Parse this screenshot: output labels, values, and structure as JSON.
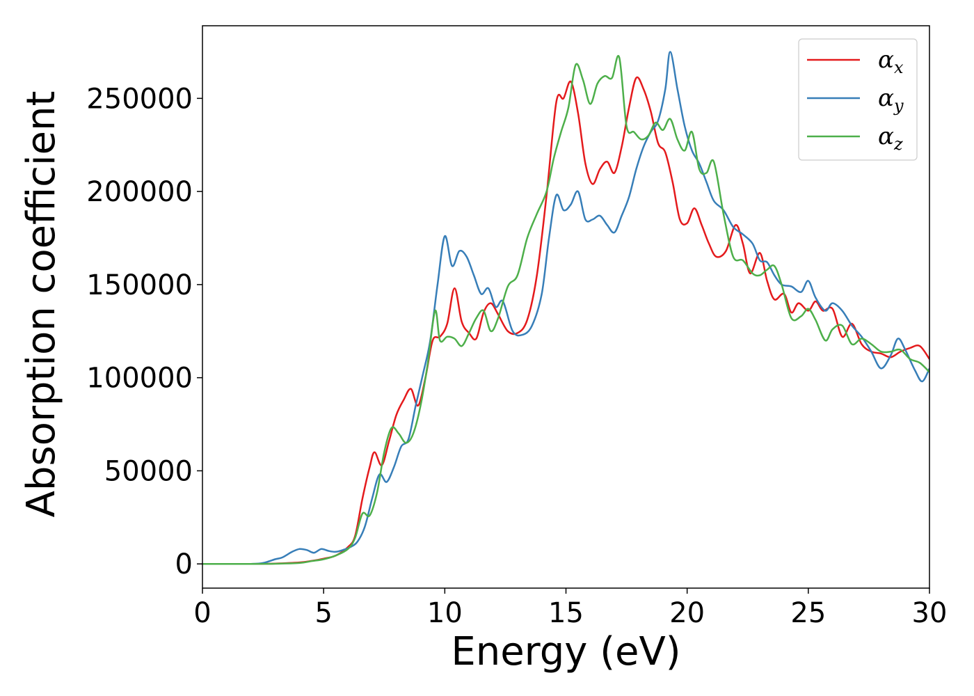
{
  "chart_data": {
    "type": "line",
    "title": "",
    "xlabel": "Energy (eV)",
    "ylabel": "Absorption coefficient",
    "xlim": [
      0,
      30
    ],
    "ylim": [
      -13000,
      289000
    ],
    "xticks": [
      0,
      5,
      10,
      15,
      20,
      25,
      30
    ],
    "xtick_labels": [
      "0",
      "5",
      "10",
      "15",
      "20",
      "25",
      "30"
    ],
    "yticks": [
      0,
      50000,
      100000,
      150000,
      200000,
      250000
    ],
    "ytick_labels": [
      "0",
      "50000",
      "100000",
      "150000",
      "200000",
      "250000"
    ],
    "grid": false,
    "legend": "top-right",
    "series": [
      {
        "name": "αx",
        "legend_symbol": "α",
        "legend_sub": "x",
        "color": "#e41a1c",
        "x": [
          0,
          1,
          2,
          3,
          4,
          4.5,
          5,
          5.5,
          6,
          6.3,
          6.6,
          6.9,
          7.1,
          7.4,
          7.7,
          8.0,
          8.3,
          8.6,
          8.9,
          9.2,
          9.5,
          9.8,
          10.1,
          10.4,
          10.7,
          11.0,
          11.3,
          11.6,
          11.9,
          12.2,
          12.6,
          13.0,
          13.4,
          13.8,
          14.2,
          14.6,
          14.9,
          15.2,
          15.5,
          15.8,
          16.1,
          16.4,
          16.7,
          17.0,
          17.3,
          17.6,
          17.9,
          18.2,
          18.5,
          18.8,
          19.1,
          19.4,
          19.7,
          20.0,
          20.3,
          20.6,
          20.9,
          21.2,
          21.6,
          22.0,
          22.3,
          22.6,
          23.0,
          23.3,
          23.6,
          24.0,
          24.3,
          24.6,
          25.0,
          25.3,
          25.6,
          26.0,
          26.4,
          26.8,
          27.2,
          27.6,
          28.0,
          28.4,
          28.8,
          29.2,
          29.6,
          30.0
        ],
        "values": [
          0,
          0,
          0,
          200,
          800,
          1600,
          2800,
          4500,
          9000,
          15000,
          35000,
          52000,
          60000,
          53000,
          66000,
          80000,
          88000,
          94000,
          85000,
          100000,
          120000,
          122000,
          129000,
          148000,
          130000,
          124000,
          121000,
          135000,
          140000,
          134000,
          125000,
          124000,
          131000,
          155000,
          198000,
          248000,
          250000,
          259000,
          242000,
          215000,
          204000,
          212000,
          216000,
          210000,
          224000,
          245000,
          261000,
          255000,
          243000,
          226000,
          221000,
          205000,
          185000,
          183000,
          191000,
          182000,
          172000,
          165000,
          168000,
          182000,
          172000,
          156000,
          167000,
          152000,
          142000,
          145000,
          135000,
          140000,
          136000,
          141000,
          136000,
          137000,
          122000,
          129000,
          118000,
          114000,
          113000,
          111000,
          114000,
          116000,
          117000,
          110000
        ]
      },
      {
        "name": "αy",
        "legend_symbol": "α",
        "legend_sub": "y",
        "color": "#377eb8",
        "x": [
          0,
          1,
          2,
          2.5,
          3,
          3.3,
          3.7,
          4.0,
          4.3,
          4.6,
          4.9,
          5.2,
          5.5,
          5.8,
          6.1,
          6.4,
          6.7,
          7.0,
          7.3,
          7.6,
          7.9,
          8.2,
          8.5,
          8.8,
          9.1,
          9.4,
          9.7,
          10.0,
          10.3,
          10.6,
          10.9,
          11.2,
          11.5,
          11.8,
          12.1,
          12.4,
          12.8,
          13.2,
          13.6,
          14.0,
          14.3,
          14.6,
          14.9,
          15.2,
          15.5,
          15.8,
          16.1,
          16.4,
          16.7,
          17.0,
          17.3,
          17.6,
          17.9,
          18.2,
          18.5,
          18.8,
          19.1,
          19.3,
          19.6,
          19.9,
          20.2,
          20.5,
          20.8,
          21.1,
          21.5,
          21.9,
          22.3,
          22.7,
          23.0,
          23.3,
          23.6,
          23.9,
          24.3,
          24.7,
          25.0,
          25.3,
          25.7,
          26.0,
          26.4,
          26.8,
          27.2,
          27.6,
          28.0,
          28.4,
          28.7,
          29.0,
          29.4,
          29.7,
          30.0
        ],
        "values": [
          0,
          0,
          0,
          500,
          2500,
          3500,
          6500,
          8000,
          7500,
          6000,
          8000,
          7000,
          6500,
          7500,
          9000,
          12000,
          20000,
          35000,
          48000,
          44000,
          52000,
          63000,
          67000,
          85000,
          102000,
          120000,
          150000,
          176000,
          160000,
          168000,
          165000,
          155000,
          145000,
          148000,
          138000,
          141000,
          125000,
          123000,
          128000,
          145000,
          175000,
          198000,
          190000,
          193000,
          200000,
          185000,
          185000,
          187000,
          182000,
          178000,
          187000,
          197000,
          212000,
          224000,
          232000,
          238000,
          255000,
          275000,
          255000,
          235000,
          222000,
          215000,
          205000,
          195000,
          190000,
          181000,
          177000,
          172000,
          163000,
          162000,
          155000,
          150000,
          149000,
          146000,
          152000,
          143000,
          136000,
          140000,
          136000,
          128000,
          122000,
          114000,
          105000,
          112000,
          121000,
          115000,
          104000,
          98000,
          105000
        ]
      },
      {
        "name": "αz",
        "legend_symbol": "α",
        "legend_sub": "z",
        "color": "#4daf4a",
        "x": [
          0,
          1,
          2,
          3,
          4,
          4.5,
          5,
          5.5,
          6,
          6.3,
          6.6,
          6.9,
          7.2,
          7.5,
          7.8,
          8.1,
          8.4,
          8.7,
          9.0,
          9.3,
          9.6,
          9.8,
          10.1,
          10.4,
          10.7,
          11.0,
          11.3,
          11.6,
          11.9,
          12.2,
          12.6,
          13.0,
          13.4,
          13.8,
          14.2,
          14.5,
          14.8,
          15.1,
          15.4,
          15.7,
          16.0,
          16.3,
          16.6,
          16.9,
          17.2,
          17.5,
          17.8,
          18.1,
          18.4,
          18.7,
          19.0,
          19.3,
          19.6,
          19.9,
          20.2,
          20.5,
          20.8,
          21.1,
          21.5,
          21.9,
          22.3,
          22.7,
          23.0,
          23.3,
          23.6,
          23.9,
          24.3,
          24.7,
          25.0,
          25.3,
          25.7,
          26.0,
          26.4,
          26.8,
          27.2,
          27.6,
          28.0,
          28.4,
          28.8,
          29.2,
          29.6,
          30.0
        ],
        "values": [
          0,
          0,
          0,
          100,
          500,
          1500,
          2500,
          4500,
          8000,
          14000,
          27000,
          26000,
          38000,
          60000,
          73000,
          70000,
          65000,
          70000,
          85000,
          108000,
          136000,
          120000,
          122000,
          121000,
          117000,
          124000,
          132000,
          136000,
          125000,
          132000,
          149000,
          155000,
          175000,
          188000,
          200000,
          218000,
          232000,
          245000,
          268000,
          260000,
          247000,
          258000,
          262000,
          261000,
          272000,
          235000,
          232000,
          228000,
          230000,
          237000,
          233000,
          239000,
          228000,
          222000,
          232000,
          212000,
          210000,
          216000,
          188000,
          165000,
          163000,
          156000,
          155000,
          158000,
          160000,
          150000,
          132000,
          133000,
          137000,
          131000,
          120000,
          126000,
          128000,
          118000,
          121000,
          118000,
          114000,
          114000,
          115000,
          110000,
          108000,
          103000
        ]
      }
    ]
  }
}
